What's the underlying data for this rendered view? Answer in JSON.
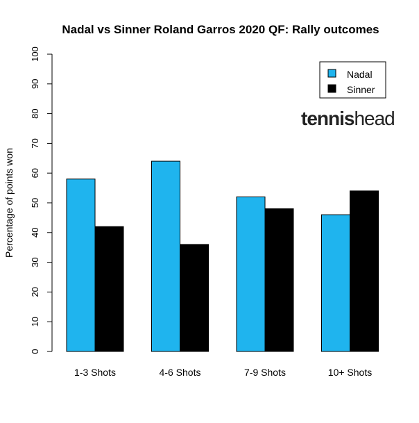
{
  "chart_data": {
    "type": "bar",
    "title": "Nadal vs Sinner Roland Garros 2020 QF: Rally outcomes",
    "xlabel": "",
    "ylabel": "Percentage of points won",
    "ylim": [
      0,
      100
    ],
    "yticks": [
      "0",
      "10",
      "20",
      "30",
      "40",
      "50",
      "60",
      "70",
      "80",
      "90",
      "100"
    ],
    "categories": [
      "1-3 Shots",
      "4-6 Shots",
      "7-9 Shots",
      "10+ Shots"
    ],
    "series": [
      {
        "name": "Nadal",
        "color": "#1fb4ee",
        "values": [
          58,
          64,
          52,
          46
        ]
      },
      {
        "name": "Sinner",
        "color": "#000000",
        "values": [
          42,
          36,
          48,
          54
        ]
      }
    ],
    "legend_position": "top-right",
    "grid": false
  },
  "watermark": {
    "text_bold": "tennis",
    "text_light": "head"
  }
}
